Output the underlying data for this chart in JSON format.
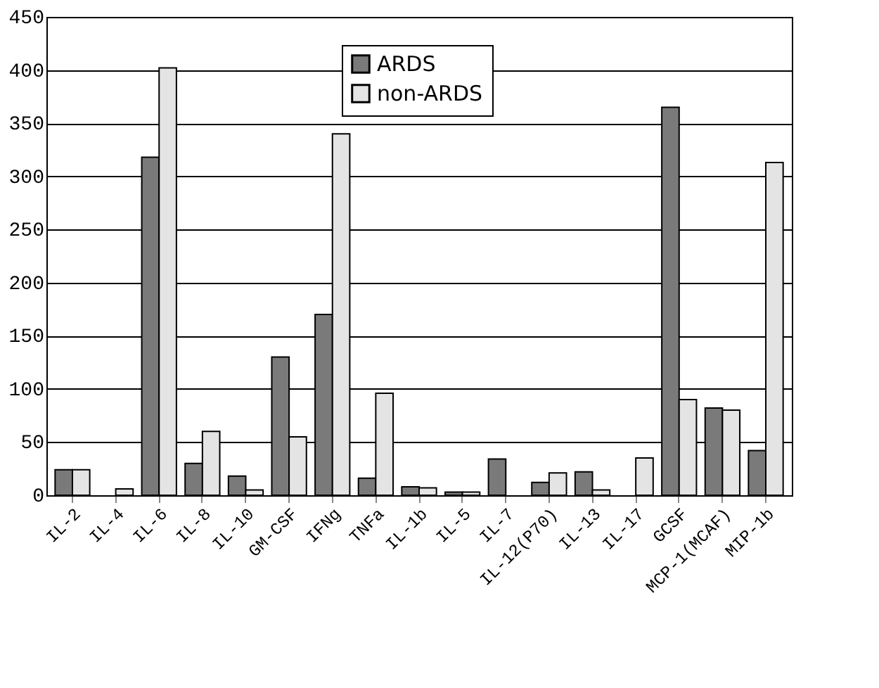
{
  "chart_data": {
    "type": "bar",
    "categories": [
      "IL-2",
      "IL-4",
      "IL-6",
      "IL-8",
      "IL-10",
      "GM-CSF",
      "IFNg",
      "TNFa",
      "IL-1b",
      "IL-5",
      "IL-7",
      "IL-12(P70)",
      "IL-13",
      "IL-17",
      "GCSF",
      "MCP-1(MCAF)",
      "MIP-1b"
    ],
    "series": [
      {
        "name": "ARDS",
        "color": "#7a7a7a",
        "values": [
          24,
          null,
          318,
          30,
          18,
          130,
          170,
          16,
          8,
          3,
          34,
          12,
          22,
          null,
          365,
          82,
          42
        ]
      },
      {
        "name": "non-ARDS",
        "color": "#e4e4e4",
        "values": [
          24,
          6,
          402,
          60,
          5,
          55,
          340,
          96,
          7,
          3,
          null,
          21,
          5,
          35,
          90,
          80,
          313
        ]
      }
    ],
    "ylim": [
      0,
      450
    ],
    "yticks": [
      0,
      50,
      100,
      150,
      200,
      250,
      300,
      350,
      400,
      450
    ],
    "grid": "y",
    "legend": "top"
  }
}
